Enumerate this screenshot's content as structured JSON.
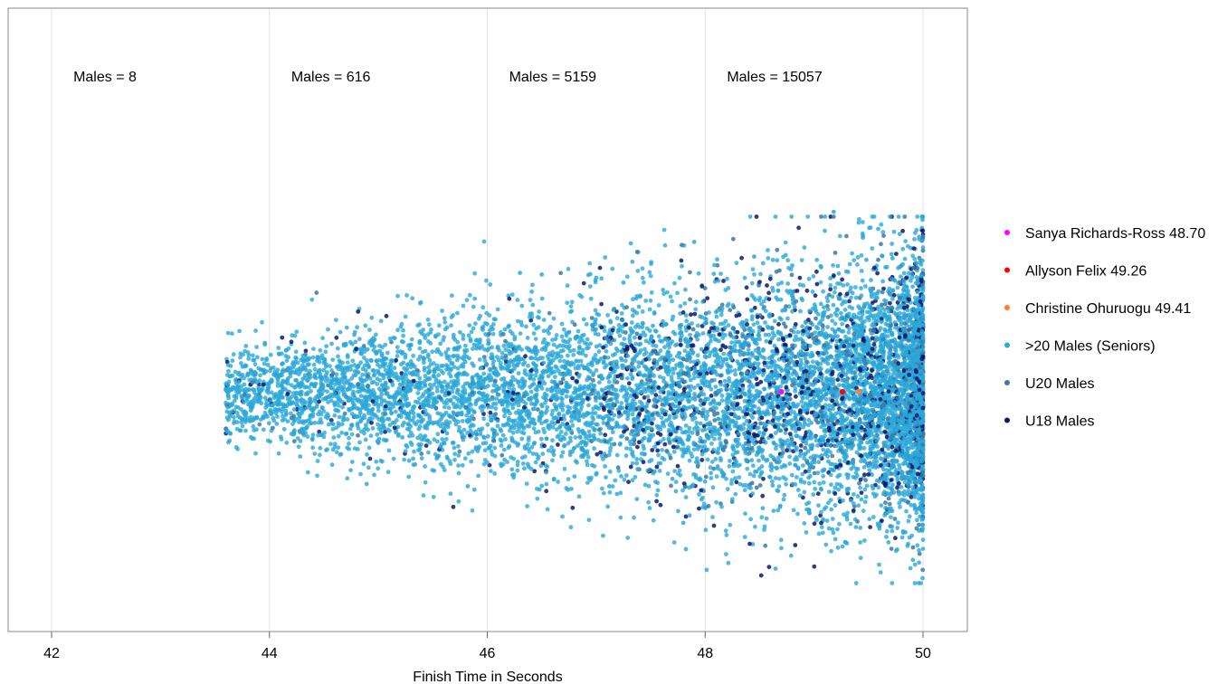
{
  "chart_data": {
    "type": "scatter",
    "title": "",
    "xlabel": "Finish Time in Seconds",
    "ylabel": "",
    "xlim": [
      42,
      50
    ],
    "x_ticks": [
      "42",
      "44",
      "46",
      "48",
      "50"
    ],
    "x_tick_values": [
      42,
      44,
      46,
      48,
      50
    ],
    "grid": {
      "vertical": true,
      "horizontal": false
    },
    "y_scale": "jitter, no axis shown",
    "legend_position": "right",
    "annotations": [
      {
        "text": "Males = 8",
        "x": 42.2
      },
      {
        "text": "Males = 616",
        "x": 44.2
      },
      {
        "text": "Males = 5159",
        "x": 46.2
      },
      {
        "text": "Males = 15057",
        "x": 48.2
      }
    ],
    "series": [
      {
        "name": "Sanya Richards-Ross 48.70",
        "color": "#ff00ff",
        "points": [
          [
            48.7,
            0.0
          ]
        ]
      },
      {
        "name": "Allyson Felix 49.26",
        "color": "#ff0000",
        "points": [
          [
            49.26,
            0.0
          ]
        ]
      },
      {
        "name": "Christine Ohuruogu 49.41",
        "color": "#ff7f27",
        "points": [
          [
            49.41,
            0.0
          ]
        ]
      },
      {
        "name": ">20 Males (Seniors)",
        "color": "#2aa8d8",
        "count_estimate": 15057,
        "points": [
          [
            43.62,
            0.02
          ],
          [
            43.72,
            0.12
          ],
          [
            43.83,
            -0.23
          ],
          [
            43.92,
            -0.07
          ],
          [
            44.03,
            -0.17
          ],
          [
            44.12,
            0.25
          ],
          [
            44.35,
            0.33
          ],
          [
            44.68,
            -0.31
          ],
          [
            44.9,
            0.52
          ],
          [
            45.05,
            0.31
          ],
          [
            45.12,
            -0.26
          ],
          [
            45.2,
            0.09
          ],
          [
            45.22,
            -0.56
          ],
          [
            45.38,
            0.62
          ],
          [
            45.41,
            -0.17
          ],
          [
            45.55,
            0.28
          ],
          [
            45.63,
            -0.51
          ],
          [
            45.75,
            0.73
          ],
          [
            45.82,
            -1.16
          ],
          [
            45.92,
            0.12
          ],
          [
            46.05,
            0.77
          ],
          [
            46.13,
            -0.91
          ],
          [
            46.2,
            0.5
          ],
          [
            46.3,
            1.46
          ],
          [
            46.38,
            -0.92
          ],
          [
            46.5,
            1.44
          ],
          [
            46.55,
            -0.92
          ],
          [
            46.8,
            -1.04
          ],
          [
            46.92,
            0.28
          ],
          [
            47.12,
            -1.16
          ],
          [
            47.25,
            1.34
          ],
          [
            47.38,
            -0.95
          ],
          [
            47.52,
            0.81
          ],
          [
            47.7,
            -1.07
          ],
          [
            47.8,
            -1.61
          ],
          [
            47.9,
            1.84
          ],
          [
            48.1,
            0.98
          ],
          [
            48.25,
            -1.32
          ],
          [
            48.45,
            1.66
          ],
          [
            48.62,
            -1.15
          ],
          [
            48.8,
            1.55
          ],
          [
            48.95,
            -1.45
          ],
          [
            49.08,
            0.93
          ],
          [
            49.18,
            2.21
          ],
          [
            49.3,
            -1.53
          ],
          [
            49.48,
            1.62
          ],
          [
            49.6,
            -1.68
          ],
          [
            49.72,
            1.64
          ],
          [
            49.82,
            -1.73
          ],
          [
            49.95,
            1.33
          ]
        ]
      },
      {
        "name": "U20 Males",
        "color": "#3c7aa3",
        "points": []
      },
      {
        "name": "U18 Males",
        "color": "#0b1a6e",
        "points": []
      }
    ]
  }
}
